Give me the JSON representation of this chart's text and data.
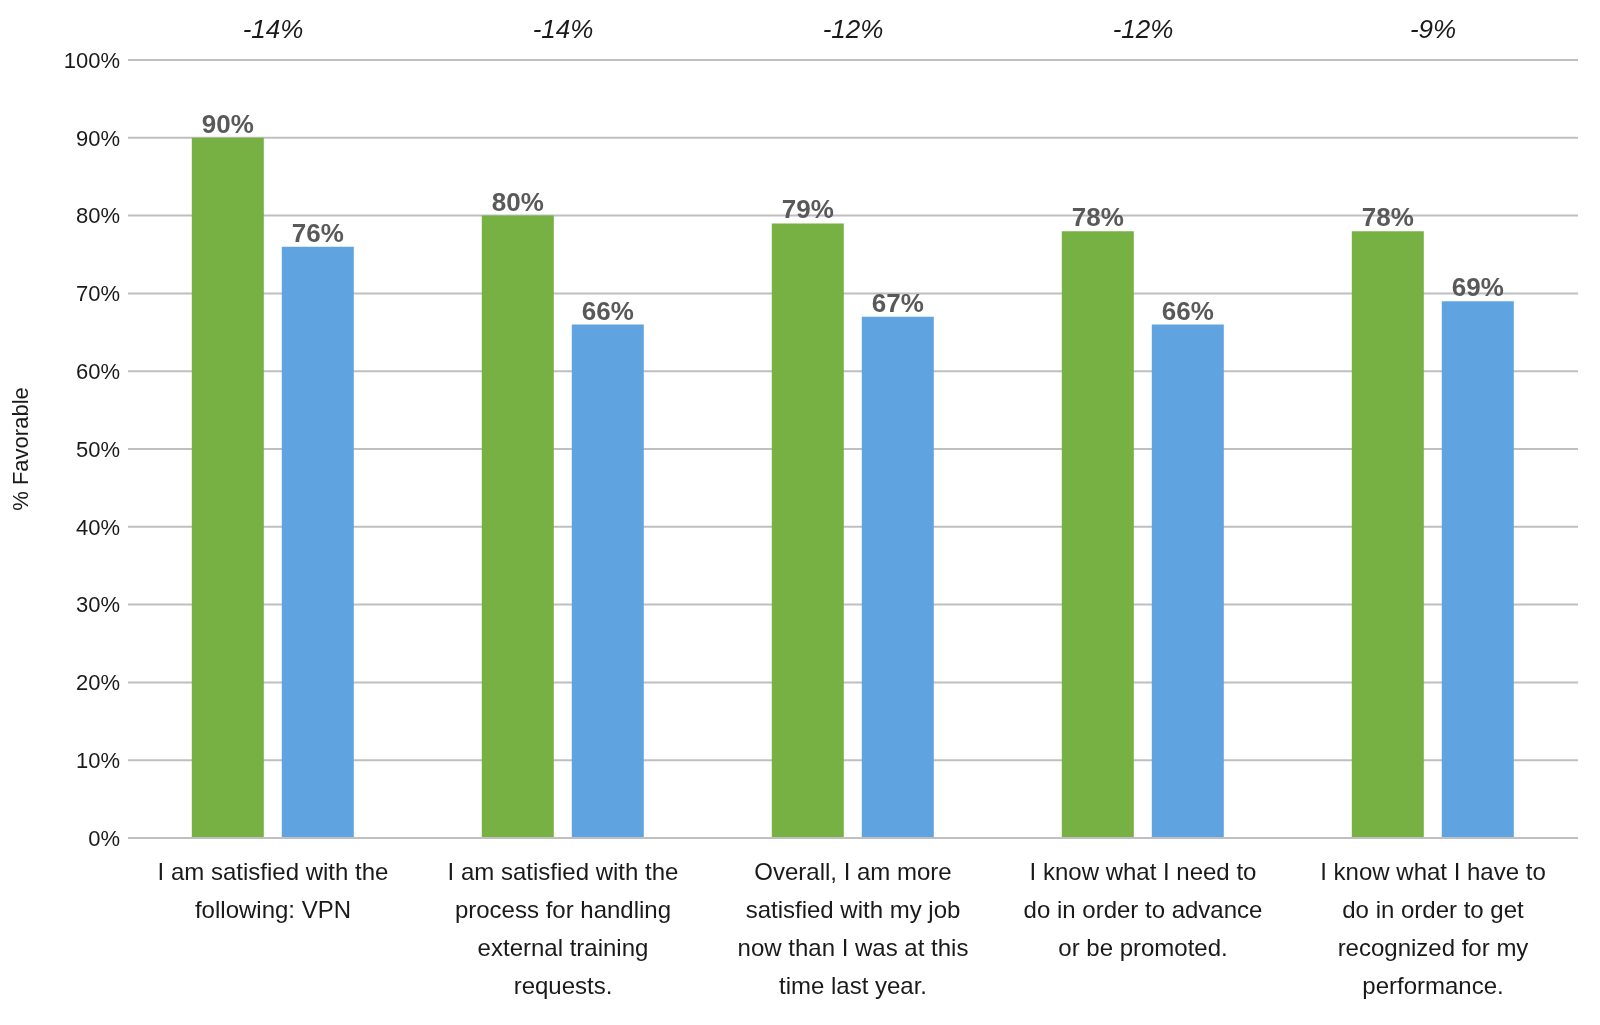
{
  "chart_data": {
    "type": "bar",
    "ylabel": "% Favorable",
    "categories": [
      "I am satisfied with the following: VPN",
      "I am satisfied with the process for handling external training requests.",
      "Overall, I am more satisfied with my job now than I was at this time last year.",
      "I know what I need to do in order to advance or be promoted.",
      "I know what I have to do in order to get recognized for my performance."
    ],
    "series": [
      {
        "color": "#77b043",
        "values": [
          90,
          80,
          79,
          78,
          78
        ],
        "value_labels": [
          "90%",
          "80%",
          "79%",
          "78%",
          "78%"
        ]
      },
      {
        "color": "#5fa4e0",
        "values": [
          76,
          66,
          67,
          66,
          69
        ],
        "value_labels": [
          "76%",
          "66%",
          "67%",
          "66%",
          "69%"
        ]
      }
    ],
    "ylim": [
      0,
      100
    ],
    "yticks": [
      {
        "value": 0,
        "label": "0%"
      },
      {
        "value": 10,
        "label": "10%"
      },
      {
        "value": 20,
        "label": "20%"
      },
      {
        "value": 30,
        "label": "30%"
      },
      {
        "value": 40,
        "label": "40%"
      },
      {
        "value": 50,
        "label": "50%"
      },
      {
        "value": 60,
        "label": "60%"
      },
      {
        "value": 70,
        "label": "70%"
      },
      {
        "value": 80,
        "label": "80%"
      },
      {
        "value": 90,
        "label": "90%"
      },
      {
        "value": 100,
        "label": "100%"
      }
    ],
    "grid": "y",
    "annotations": [
      "-14%",
      "-14%",
      "-12%",
      "-12%",
      "-9%"
    ]
  }
}
